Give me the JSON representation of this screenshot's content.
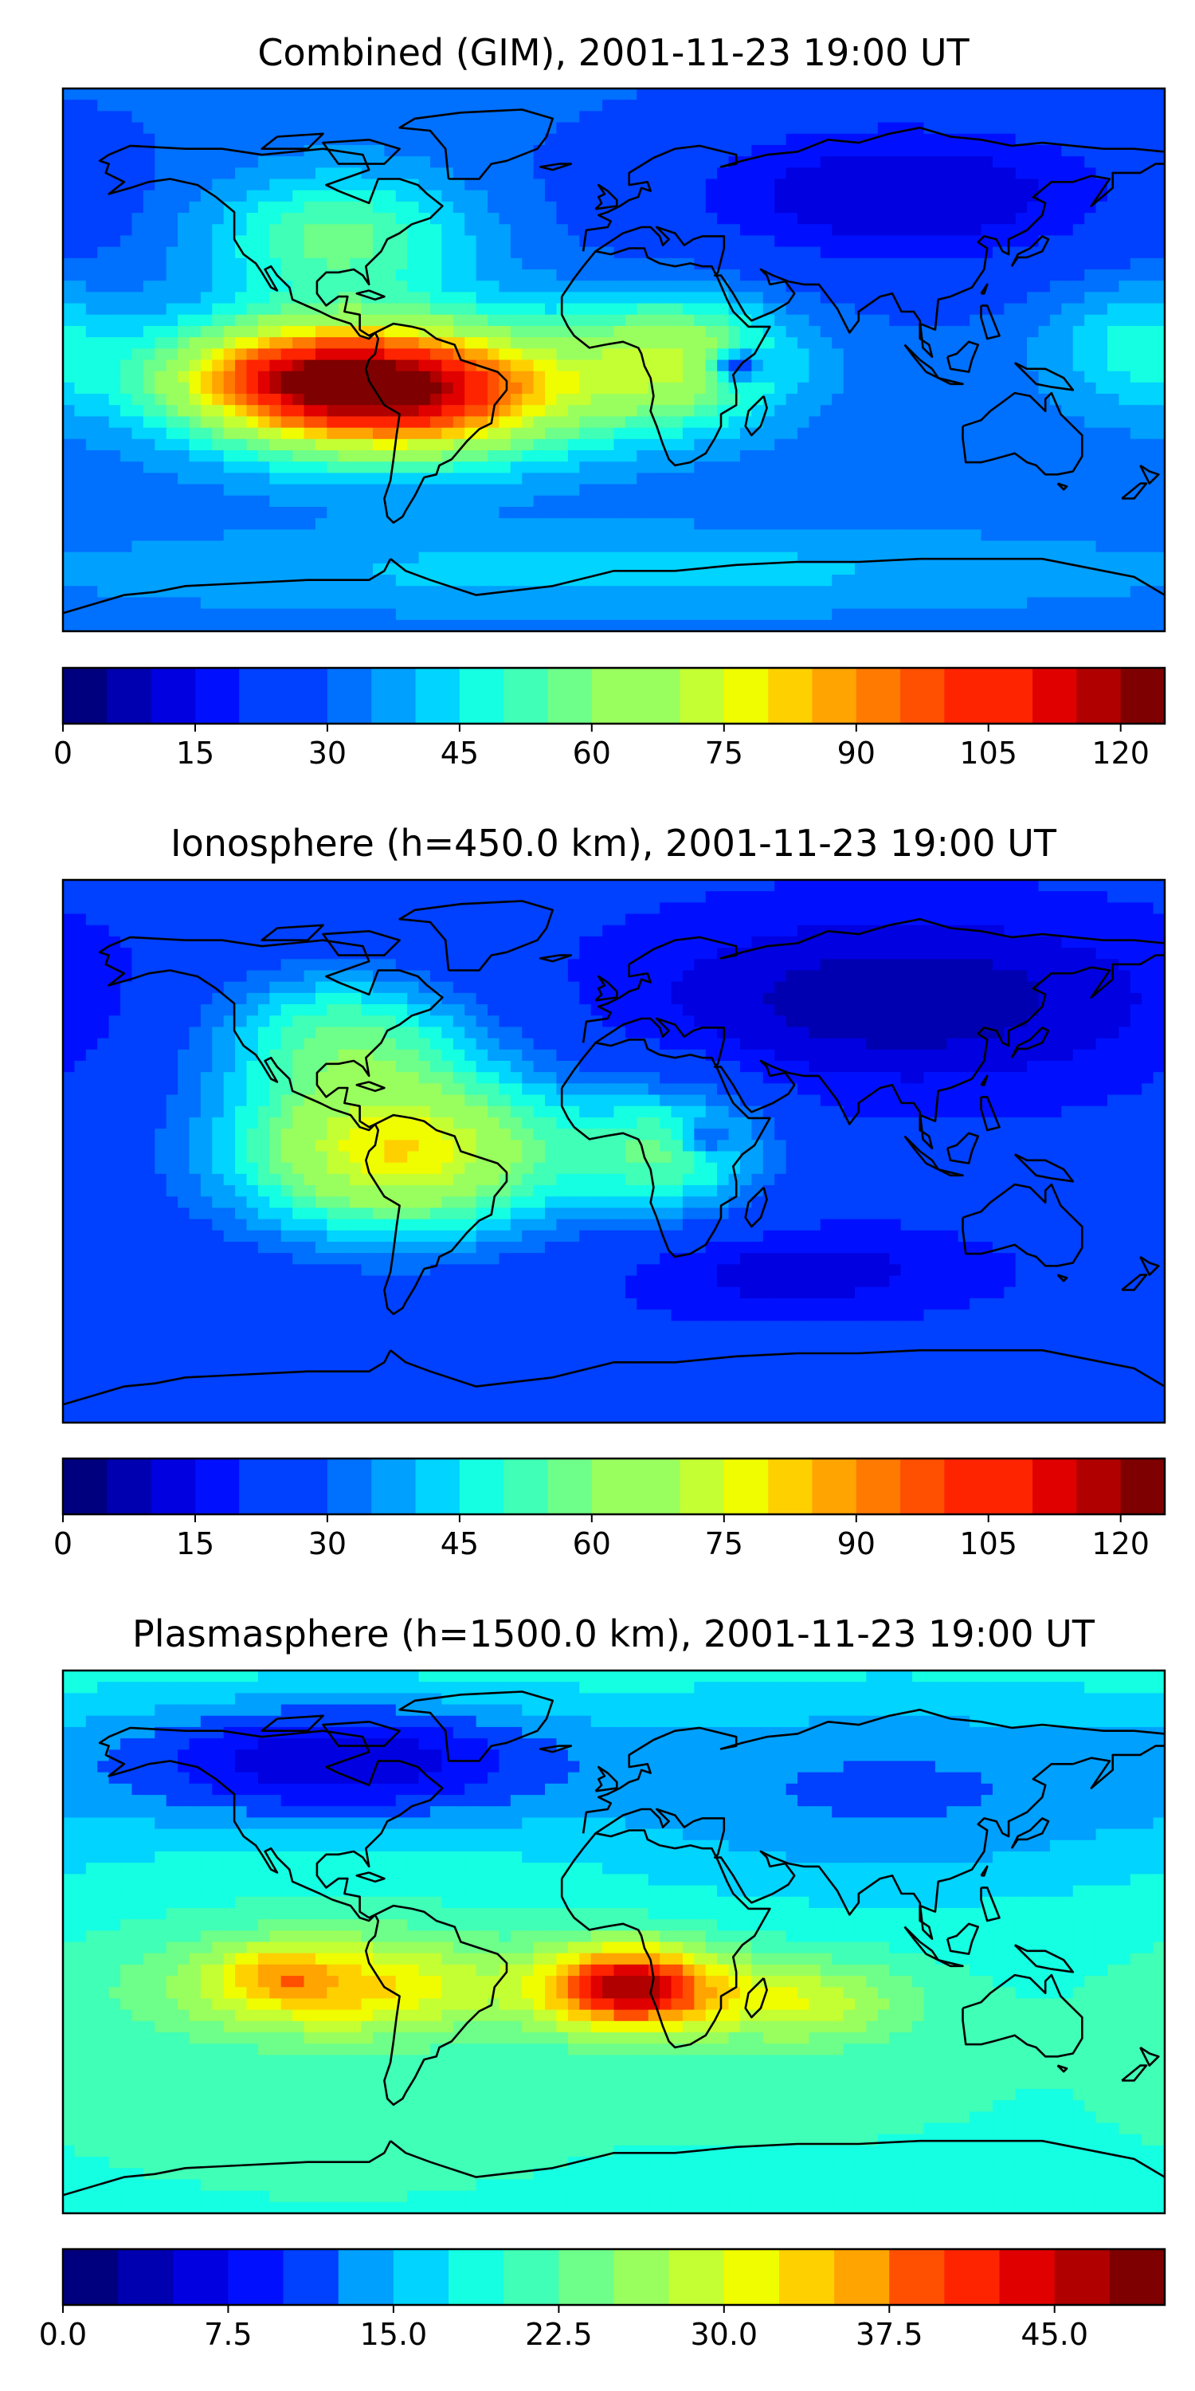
{
  "figure": {
    "panels": [
      {
        "title": "Combined (GIM), 2001-11-23 19:00 UT"
      },
      {
        "title": "Ionosphere  (h=450.0 km), 2001-11-23 19:00 UT"
      },
      {
        "title": "Plasmasphere (h=1500.0 km), 2001-11-23 19:00 UT"
      }
    ]
  },
  "colormap": [
    "#00007f",
    "#0000b0",
    "#0000e0",
    "#0010ff",
    "#0040ff",
    "#0070ff",
    "#00a0ff",
    "#00d4ff",
    "#15ffe2",
    "#40ffb6",
    "#6dff8a",
    "#99ff5e",
    "#c4ff33",
    "#f0fc00",
    "#ffd000",
    "#ffa400",
    "#ff7a00",
    "#ff4f00",
    "#ff2400",
    "#e00000",
    "#b00000",
    "#7f0000"
  ],
  "chart_data": [
    {
      "type": "heatmap",
      "title": "Combined (GIM), 2001-11-23 19:00 UT",
      "xlim": [
        -180,
        180
      ],
      "ylim": [
        -90,
        90
      ],
      "vmin": 0,
      "vmax": 125,
      "levels": 25,
      "colorbar_ticks": [
        "0",
        "15",
        "30",
        "45",
        "60",
        "75",
        "90",
        "105",
        "120"
      ],
      "colorbar_tick_values": [
        0,
        15,
        30,
        45,
        60,
        75,
        90,
        105,
        120
      ],
      "field": {
        "base": 32,
        "features": [
          {
            "lon": -70,
            "lat": -10,
            "amp": 85,
            "slon": 40,
            "slat": 15
          },
          {
            "lon": -110,
            "lat": -5,
            "amp": 35,
            "slon": 30,
            "slat": 12
          },
          {
            "lon": -90,
            "lat": 40,
            "amp": 25,
            "slon": 30,
            "slat": 15
          },
          {
            "lon": 20,
            "lat": 0,
            "amp": 35,
            "slon": 25,
            "slat": 15
          },
          {
            "lon": 40,
            "lat": -2,
            "amp": -30,
            "slon": 6,
            "slat": 4
          },
          {
            "lon": 95,
            "lat": 55,
            "amp": -22,
            "slon": 60,
            "slat": 20
          },
          {
            "lon": 170,
            "lat": 5,
            "amp": 15,
            "slon": 20,
            "slat": 15
          },
          {
            "lon": 0,
            "lat": -70,
            "amp": 10,
            "slon": 120,
            "slat": 10
          }
        ]
      }
    },
    {
      "type": "heatmap",
      "title": "Ionosphere  (h=450.0 km), 2001-11-23 19:00 UT",
      "xlim": [
        -180,
        180
      ],
      "ylim": [
        -90,
        90
      ],
      "vmin": 0,
      "vmax": 125,
      "levels": 25,
      "colorbar_ticks": [
        "0",
        "15",
        "30",
        "45",
        "60",
        "75",
        "90",
        "105",
        "120"
      ],
      "colorbar_tick_values": [
        0,
        15,
        30,
        45,
        60,
        75,
        90,
        105,
        120
      ],
      "field": {
        "base": 22,
        "features": [
          {
            "lon": -70,
            "lat": 0,
            "amp": 58,
            "slon": 40,
            "slat": 20
          },
          {
            "lon": -90,
            "lat": 40,
            "amp": 28,
            "slon": 30,
            "slat": 15
          },
          {
            "lon": 20,
            "lat": 0,
            "amp": 30,
            "slon": 22,
            "slat": 15
          },
          {
            "lon": 30,
            "lat": 4,
            "amp": -20,
            "slon": 6,
            "slat": 4
          },
          {
            "lon": 95,
            "lat": 50,
            "amp": -16,
            "slon": 60,
            "slat": 20
          },
          {
            "lon": 60,
            "lat": -40,
            "amp": -10,
            "slon": 40,
            "slat": 10
          }
        ]
      }
    },
    {
      "type": "heatmap",
      "title": "Plasmasphere (h=1500.0 km), 2001-11-23 19:00 UT",
      "xlim": [
        -180,
        180
      ],
      "ylim": [
        -90,
        90
      ],
      "vmin": 0,
      "vmax": 50,
      "levels": 20,
      "colorbar_ticks": [
        "0.0",
        "7.5",
        "15.0",
        "22.5",
        "30.0",
        "37.5",
        "45.0"
      ],
      "colorbar_tick_values": [
        0,
        7.5,
        15,
        22.5,
        30,
        37.5,
        45
      ],
      "field": {
        "base": 20,
        "features": [
          {
            "lon": 5,
            "lat": -15,
            "amp": 26,
            "slon": 20,
            "slat": 10
          },
          {
            "lon": -90,
            "lat": -15,
            "amp": 14,
            "slon": 40,
            "slat": 12
          },
          {
            "lon": -110,
            "lat": -10,
            "amp": 6,
            "slon": 12,
            "slat": 6
          },
          {
            "lon": 60,
            "lat": -20,
            "amp": 10,
            "slon": 25,
            "slat": 10
          },
          {
            "lon": -90,
            "lat": 60,
            "amp": -14,
            "slon": 50,
            "slat": 15
          },
          {
            "lon": 90,
            "lat": 50,
            "amp": -8,
            "slon": 80,
            "slat": 25
          }
        ]
      }
    }
  ]
}
